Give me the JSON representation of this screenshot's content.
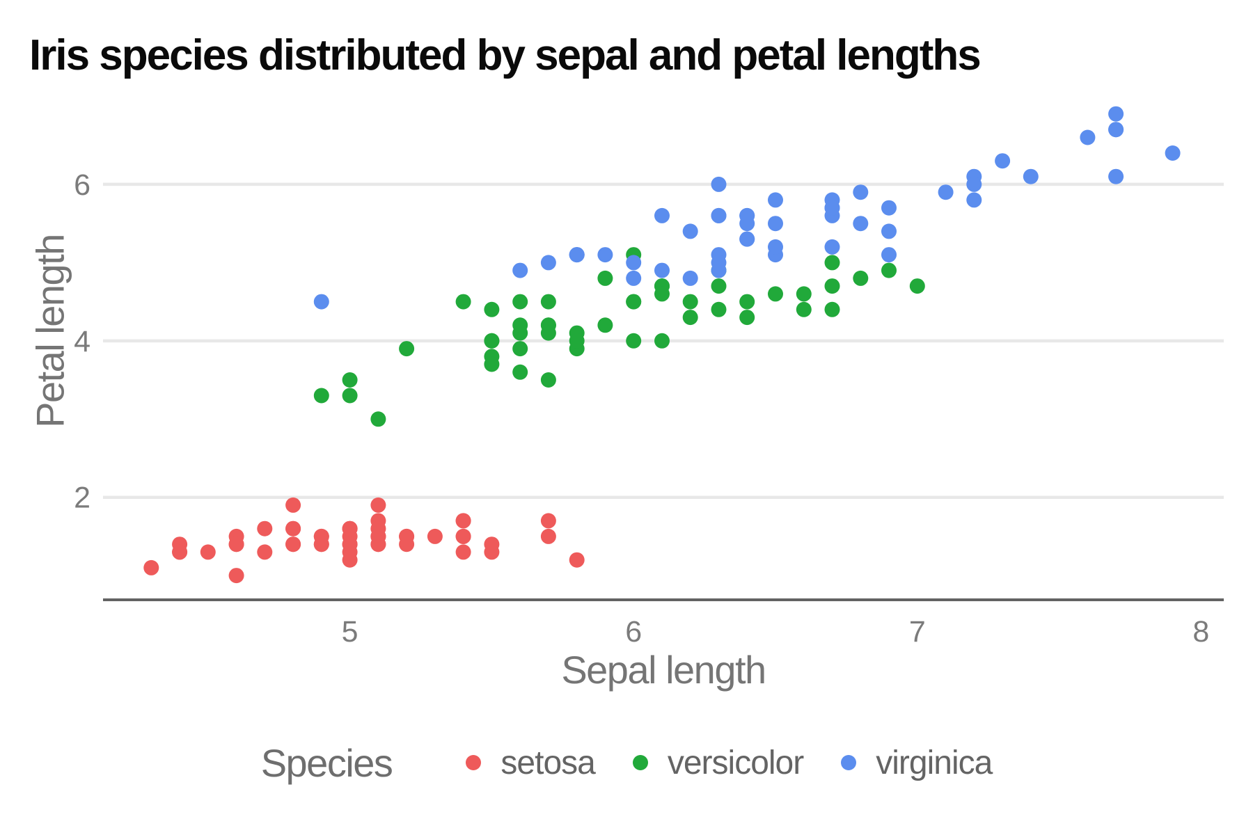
{
  "title": "Iris species distributed by sepal and petal lengths",
  "colors": {
    "background": "#ffffff",
    "grid": "#e8e8e8",
    "axis_line": "#636363",
    "tick_text": "#7b7b7b",
    "axis_title_text": "#757575",
    "legend_text": "#646464",
    "title_text": "#0a0a0a",
    "setosa": "#ee5a5a",
    "versicolor": "#21a93a",
    "virginica": "#5b8dee"
  },
  "legend": {
    "title": "Species",
    "items": [
      {
        "label": "setosa",
        "color": "#ee5a5a"
      },
      {
        "label": "versicolor",
        "color": "#21a93a"
      },
      {
        "label": "virginica",
        "color": "#5b8dee"
      }
    ]
  },
  "chart_data": {
    "type": "scatter",
    "title": "Iris species distributed by sepal and petal lengths",
    "xlabel": "Sepal length",
    "ylabel": "Petal length",
    "xlim": [
      4.13,
      8.08
    ],
    "ylim": [
      0.69,
      7.2
    ],
    "x_ticks": [
      5,
      6,
      7,
      8
    ],
    "y_ticks": [
      2,
      4,
      6
    ],
    "grid": "horizontal-only",
    "legend_position": "bottom",
    "series": [
      {
        "name": "setosa",
        "color": "#ee5a5a",
        "points": [
          [
            5.1,
            1.4
          ],
          [
            4.9,
            1.4
          ],
          [
            4.7,
            1.3
          ],
          [
            4.6,
            1.5
          ],
          [
            5.0,
            1.4
          ],
          [
            5.4,
            1.7
          ],
          [
            4.6,
            1.4
          ],
          [
            5.0,
            1.5
          ],
          [
            4.4,
            1.4
          ],
          [
            4.9,
            1.5
          ],
          [
            5.4,
            1.5
          ],
          [
            4.8,
            1.6
          ],
          [
            4.8,
            1.4
          ],
          [
            4.3,
            1.1
          ],
          [
            5.8,
            1.2
          ],
          [
            5.7,
            1.5
          ],
          [
            5.4,
            1.3
          ],
          [
            5.1,
            1.4
          ],
          [
            5.7,
            1.7
          ],
          [
            5.1,
            1.5
          ],
          [
            5.4,
            1.7
          ],
          [
            5.1,
            1.5
          ],
          [
            4.6,
            1.0
          ],
          [
            5.1,
            1.7
          ],
          [
            4.8,
            1.9
          ],
          [
            5.0,
            1.6
          ],
          [
            5.0,
            1.6
          ],
          [
            5.2,
            1.5
          ],
          [
            5.2,
            1.4
          ],
          [
            4.7,
            1.6
          ],
          [
            4.8,
            1.6
          ],
          [
            5.4,
            1.5
          ],
          [
            5.2,
            1.5
          ],
          [
            5.5,
            1.4
          ],
          [
            4.9,
            1.5
          ],
          [
            5.0,
            1.2
          ],
          [
            5.5,
            1.3
          ],
          [
            4.9,
            1.4
          ],
          [
            4.4,
            1.3
          ],
          [
            5.1,
            1.5
          ],
          [
            5.0,
            1.3
          ],
          [
            4.5,
            1.3
          ],
          [
            4.4,
            1.3
          ],
          [
            5.0,
            1.6
          ],
          [
            5.1,
            1.9
          ],
          [
            4.8,
            1.4
          ],
          [
            5.1,
            1.6
          ],
          [
            4.6,
            1.4
          ],
          [
            5.3,
            1.5
          ],
          [
            5.0,
            1.4
          ]
        ]
      },
      {
        "name": "versicolor",
        "color": "#21a93a",
        "points": [
          [
            7.0,
            4.7
          ],
          [
            6.4,
            4.5
          ],
          [
            6.9,
            4.9
          ],
          [
            5.5,
            4.0
          ],
          [
            6.5,
            4.6
          ],
          [
            5.7,
            4.5
          ],
          [
            6.3,
            4.7
          ],
          [
            4.9,
            3.3
          ],
          [
            6.6,
            4.6
          ],
          [
            5.2,
            3.9
          ],
          [
            5.0,
            3.5
          ],
          [
            5.9,
            4.2
          ],
          [
            6.0,
            4.0
          ],
          [
            6.1,
            4.7
          ],
          [
            5.6,
            3.6
          ],
          [
            6.7,
            4.4
          ],
          [
            5.6,
            4.5
          ],
          [
            5.8,
            4.1
          ],
          [
            6.2,
            4.5
          ],
          [
            5.6,
            3.9
          ],
          [
            5.9,
            4.8
          ],
          [
            6.1,
            4.0
          ],
          [
            6.3,
            4.9
          ],
          [
            6.1,
            4.7
          ],
          [
            6.4,
            4.3
          ],
          [
            6.6,
            4.4
          ],
          [
            6.8,
            4.8
          ],
          [
            6.7,
            5.0
          ],
          [
            6.0,
            4.5
          ],
          [
            5.7,
            3.5
          ],
          [
            5.5,
            3.8
          ],
          [
            5.5,
            3.7
          ],
          [
            5.8,
            3.9
          ],
          [
            6.0,
            5.1
          ],
          [
            5.4,
            4.5
          ],
          [
            6.0,
            4.5
          ],
          [
            6.7,
            4.7
          ],
          [
            6.3,
            4.4
          ],
          [
            5.6,
            4.1
          ],
          [
            5.5,
            4.0
          ],
          [
            5.5,
            4.4
          ],
          [
            6.1,
            4.6
          ],
          [
            5.8,
            4.0
          ],
          [
            5.0,
            3.3
          ],
          [
            5.6,
            4.2
          ],
          [
            5.7,
            4.2
          ],
          [
            5.7,
            4.2
          ],
          [
            6.2,
            4.3
          ],
          [
            5.1,
            3.0
          ],
          [
            5.7,
            4.1
          ]
        ]
      },
      {
        "name": "virginica",
        "color": "#5b8dee",
        "points": [
          [
            6.3,
            6.0
          ],
          [
            5.8,
            5.1
          ],
          [
            7.1,
            5.9
          ],
          [
            6.3,
            5.6
          ],
          [
            6.5,
            5.8
          ],
          [
            7.6,
            6.6
          ],
          [
            4.9,
            4.5
          ],
          [
            7.3,
            6.3
          ],
          [
            6.7,
            5.8
          ],
          [
            7.2,
            6.1
          ],
          [
            6.5,
            5.1
          ],
          [
            6.4,
            5.3
          ],
          [
            6.8,
            5.5
          ],
          [
            5.7,
            5.0
          ],
          [
            5.8,
            5.1
          ],
          [
            6.4,
            5.3
          ],
          [
            6.5,
            5.5
          ],
          [
            7.7,
            6.7
          ],
          [
            7.7,
            6.9
          ],
          [
            6.0,
            5.0
          ],
          [
            6.9,
            5.7
          ],
          [
            5.6,
            4.9
          ],
          [
            7.7,
            6.7
          ],
          [
            6.3,
            4.9
          ],
          [
            6.7,
            5.7
          ],
          [
            7.2,
            6.0
          ],
          [
            6.2,
            4.8
          ],
          [
            6.1,
            4.9
          ],
          [
            6.4,
            5.6
          ],
          [
            7.2,
            5.8
          ],
          [
            7.4,
            6.1
          ],
          [
            7.9,
            6.4
          ],
          [
            6.4,
            5.6
          ],
          [
            6.3,
            5.1
          ],
          [
            6.1,
            5.6
          ],
          [
            7.7,
            6.1
          ],
          [
            6.3,
            5.6
          ],
          [
            6.4,
            5.5
          ],
          [
            6.0,
            4.8
          ],
          [
            6.9,
            5.4
          ],
          [
            6.7,
            5.6
          ],
          [
            6.9,
            5.1
          ],
          [
            5.8,
            5.1
          ],
          [
            6.8,
            5.9
          ],
          [
            6.7,
            5.7
          ],
          [
            6.7,
            5.2
          ],
          [
            6.3,
            5.0
          ],
          [
            6.5,
            5.2
          ],
          [
            6.2,
            5.4
          ],
          [
            5.9,
            5.1
          ]
        ]
      }
    ]
  }
}
